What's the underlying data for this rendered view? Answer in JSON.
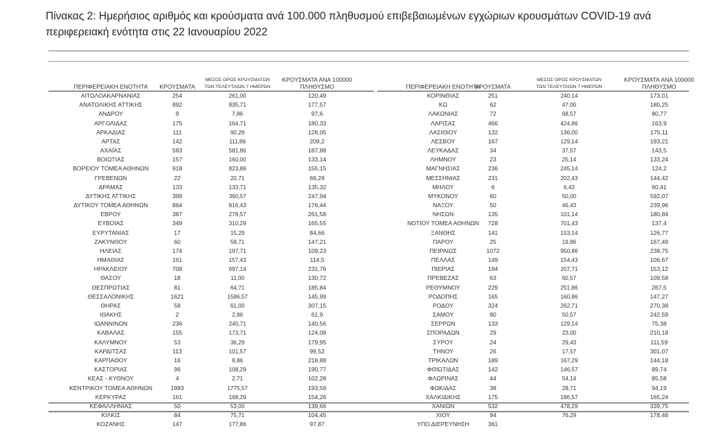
{
  "title": "Πίνακας 2: Ημερήσιος αριθμός και κρούσματα ανά 100.000 πληθυσμού επιβεβαιωμένων εγχώριων κρουσμάτων COVID-19 ανά περιφερειακή ενότητα στις 22 Ιανουαρίου 2022",
  "columns": {
    "region": "ΠΕΡΙΦΕΡΕΙΑΚΗ ΕΝΟΤΗΤΑ",
    "cases": "ΚΡΟΥΣΜΑΤΑ",
    "avg7_line1": "ΜΕΣΟΣ ΟΡΟΣ ΚΡΟΥΣΜΑΤΩΝ",
    "avg7_line2": "ΤΩΝ ΤΕΛΕΥΤΑΙΩΝ 7 ΗΜΕΡΩΝ",
    "per100k_line1": "ΚΡΟΥΣΜΑΤΑ ΑΝΑ 100000",
    "per100k_line2": "ΠΛΗΘΥΣΜΟ"
  },
  "left_rows": [
    [
      "ΑΙΤΩΛΟΑΚΑΡΝΑΝΙΑΣ",
      "254",
      "261,00",
      "120,49"
    ],
    [
      "ΑΝΑΤΟΛΙΚΗΣ ΑΤΤΙΚΗΣ",
      "892",
      "835,71",
      "177,57"
    ],
    [
      "ΑΝΔΡΟΥ",
      "9",
      "7,86",
      "97,6"
    ],
    [
      "ΑΡΓΟΛΙΔΑΣ",
      "175",
      "164,71",
      "180,33"
    ],
    [
      "ΑΡΚΑΔΙΑΣ",
      "111",
      "90,29",
      "128,05"
    ],
    [
      "ΑΡΤΑΣ",
      "142",
      "111,86",
      "209,2"
    ],
    [
      "ΑΧΑΪΑΣ",
      "583",
      "581,86",
      "187,88"
    ],
    [
      "ΒΟΙΩΤΙΑΣ",
      "157",
      "160,00",
      "133,14"
    ],
    [
      "ΒΟΡΕΙΟΥ ΤΟΜΕΑ ΑΘΗΝΩΝ",
      "918",
      "823,86",
      "155,15"
    ],
    [
      "ΓΡΕΒΕΝΩΝ",
      "22",
      "20,71",
      "69,28"
    ],
    [
      "ΔΡΑΜΑΣ",
      "133",
      "133,71",
      "135,32"
    ],
    [
      "ΔΥΤΙΚΗΣ ΑΤΤΙΚΗΣ",
      "399",
      "360,57",
      "247,94"
    ],
    [
      "ΔΥΤΙΚΟΥ ΤΟΜΕΑ ΑΘΗΝΩΝ",
      "864",
      "816,43",
      "176,44"
    ],
    [
      "ΕΒΡΟΥ",
      "387",
      "278,57",
      "261,58"
    ],
    [
      "ΕΥΒΟΙΑΣ",
      "349",
      "310,29",
      "165,55"
    ],
    [
      "ΕΥΡΥΤΑΝΙΑΣ",
      "17",
      "15,29",
      "84,66"
    ],
    [
      "ΖΑΚΥΝΘΟΥ",
      "60",
      "58,71",
      "147,21"
    ],
    [
      "ΗΛΕΙΑΣ",
      "174",
      "197,71",
      "109,23"
    ],
    [
      "ΗΜΑΘΙΑΣ",
      "161",
      "157,43",
      "114,5"
    ],
    [
      "ΗΡΑΚΛΕΙΟΥ",
      "708",
      "697,14",
      "231,76"
    ],
    [
      "ΘΑΣΟΥ",
      "18",
      "11,00",
      "130,72"
    ],
    [
      "ΘΕΣΠΡΩΤΙΑΣ",
      "81",
      "64,71",
      "185,84"
    ],
    [
      "ΘΕΣΣΑΛΟΝΙΚΗΣ",
      "1621",
      "1586,57",
      "145,99"
    ],
    [
      "ΘΗΡΑΣ",
      "58",
      "61,00",
      "307,15"
    ],
    [
      "ΙΘΑΚΗΣ",
      "2",
      "2,86",
      "61,9"
    ],
    [
      "ΙΩΑΝΝΙΝΩΝ",
      "236",
      "240,71",
      "140,56"
    ],
    [
      "ΚΑΒΑΛΑΣ",
      "155",
      "173,71",
      "124,08"
    ],
    [
      "ΚΑΛΥΜΝΟΥ",
      "53",
      "36,29",
      "179,95"
    ],
    [
      "ΚΑΡΔΙΤΣΑΣ",
      "113",
      "101,57",
      "99,52"
    ],
    [
      "ΚΑΡΠΑΘΟΥ",
      "16",
      "8,86",
      "218,88"
    ],
    [
      "ΚΑΣΤΟΡΙΑΣ",
      "96",
      "108,29",
      "190,77"
    ],
    [
      "ΚΕΑΣ - ΚΥΘΝΟΥ",
      "4",
      "2,71",
      "102,28"
    ],
    [
      "ΚΕΝΤΡΙΚΟΥ ΤΟΜΕΑ ΑΘΗΝΩΝ",
      "1993",
      "1775,57",
      "193,59"
    ],
    [
      "ΚΕΡΚΥΡΑΣ",
      "161",
      "168,29",
      "154,26"
    ],
    [
      "ΚΕΦΑΛΛΗΝΙΑΣ",
      "50",
      "53,00",
      "139,66"
    ],
    [
      "ΚΙΛΚΙΣ",
      "84",
      "75,71",
      "104,45"
    ],
    [
      "ΚΟΖΑΝΗΣ",
      "147",
      "177,86",
      "97,87"
    ]
  ],
  "right_rows": [
    [
      "ΚΟΡΙΝΘΙΑΣ",
      "251",
      "240,14",
      "173,01"
    ],
    [
      "ΚΩ",
      "62",
      "47,00",
      "180,25"
    ],
    [
      "ΛΑΚΩΝΙΑΣ",
      "72",
      "68,57",
      "80,77"
    ],
    [
      "ΛΑΡΙΣΑΣ",
      "466",
      "424,86",
      "163,9"
    ],
    [
      "ΛΑΣΙΘΙΟΥ",
      "132",
      "136,00",
      "175,11"
    ],
    [
      "ΛΕΣΒΟΥ",
      "167",
      "129,14",
      "193,21"
    ],
    [
      "ΛΕΥΚΑΔΑΣ",
      "34",
      "37,57",
      "143,5"
    ],
    [
      "ΛΗΜΝΟΥ",
      "23",
      "25,14",
      "133,24"
    ],
    [
      "ΜΑΓΝΗΣΙΑΣ",
      "236",
      "245,14",
      "124,2"
    ],
    [
      "ΜΕΣΣΗΝΙΑΣ",
      "231",
      "202,43",
      "144,42"
    ],
    [
      "ΜΗΛΟΥ",
      "6",
      "6,43",
      "60,41"
    ],
    [
      "ΜΥΚΟΝΟΥ",
      "60",
      "50,00",
      "592,07"
    ],
    [
      "ΝΑΞΟΥ",
      "50",
      "46,43",
      "239,96"
    ],
    [
      "ΝΗΣΩΝ",
      "135",
      "101,14",
      "180,84"
    ],
    [
      "ΝΟΤΙΟΥ ΤΟΜΕΑ ΑΘΗΝΩΝ",
      "728",
      "701,43",
      "137,4"
    ],
    [
      "ΞΑΝΘΗΣ",
      "141",
      "153,14",
      "126,77"
    ],
    [
      "ΠΑΡΟΥ",
      "25",
      "19,86",
      "167,49"
    ],
    [
      "ΠΕΙΡΑΙΩΣ",
      "1072",
      "950,86",
      "238,75"
    ],
    [
      "ΠΕΛΛΑΣ",
      "149",
      "154,43",
      "106,67"
    ],
    [
      "ΠΙΕΡΙΑΣ",
      "194",
      "207,71",
      "153,12"
    ],
    [
      "ΠΡΕΒΕΖΑΣ",
      "63",
      "60,57",
      "109,58"
    ],
    [
      "ΡΕΘΥΜΝΟΥ",
      "229",
      "251,86",
      "267,5"
    ],
    [
      "ΡΟΔΟΠΗΣ",
      "165",
      "160,86",
      "147,27"
    ],
    [
      "ΡΟΔΟΥ",
      "324",
      "262,71",
      "270,38"
    ],
    [
      "ΣΑΜΟΥ",
      "80",
      "50,57",
      "242,59"
    ],
    [
      "ΣΕΡΡΩΝ",
      "133",
      "129,14",
      "75,38"
    ],
    [
      "ΣΠΟΡΑΔΩΝ",
      "29",
      "23,00",
      "210,18"
    ],
    [
      "ΣΥΡΟΥ",
      "24",
      "29,43",
      "111,59"
    ],
    [
      "ΤΗΝΟΥ",
      "26",
      "17,57",
      "301,07"
    ],
    [
      "ΤΡΙΚΑΛΩΝ",
      "189",
      "167,29",
      "144,18"
    ],
    [
      "ΦΘΙΩΤΙΔΑΣ",
      "142",
      "146,57",
      "89,74"
    ],
    [
      "ΦΛΩΡΙΝΑΣ",
      "44",
      "54,14",
      "85,58"
    ],
    [
      "ΦΩΚΙΔΑΣ",
      "38",
      "28,71",
      "94,19"
    ],
    [
      "ΧΑΛΚΙΔΙΚΗΣ",
      "175",
      "186,57",
      "165,24"
    ],
    [
      "ΧΑΝΙΩΝ",
      "532",
      "478,29",
      "339,75"
    ],
    [
      "ΧΙΟΥ",
      "94",
      "76,29",
      "178,46"
    ],
    [
      "ΥΠΟ ΔΙΕΡΕΥΝΗΣΗ",
      "361",
      "",
      ""
    ]
  ]
}
